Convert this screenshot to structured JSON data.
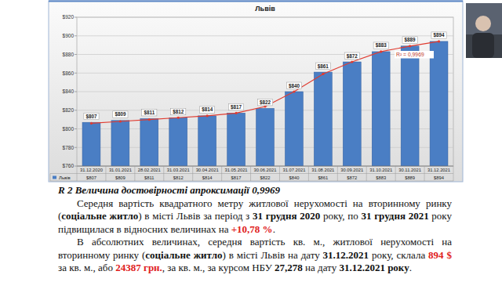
{
  "chart_data": {
    "type": "bar",
    "title": "Львів",
    "categories": [
      "31.12.2020",
      "31.01.2021",
      "28.02.2021",
      "31.03.2021",
      "30.04.2021",
      "31.05.2021",
      "30.06.2021",
      "31.07.2021",
      "31.08.2021",
      "30.09.2021",
      "31.10.2021",
      "30.11.2021",
      "31.12.2021"
    ],
    "series": [
      {
        "name": "Львів",
        "color": "#4a7ec4",
        "values": [
          807,
          809,
          811,
          812,
          814,
          817,
          822,
          840,
          861,
          872,
          883,
          889,
          894
        ],
        "value_labels": [
          "$807",
          "$809",
          "$811",
          "$812",
          "$814",
          "$817",
          "$822",
          "$840",
          "$861",
          "$872",
          "$883",
          "$889",
          "$894"
        ]
      },
      {
        "type": "line",
        "color": "#e03c31",
        "marker": "circle",
        "values": [
          806,
          808,
          810,
          812,
          814,
          817,
          824,
          840,
          859,
          872,
          883,
          889,
          894
        ]
      }
    ],
    "ylim": [
      760,
      920
    ],
    "yticks": [
      {
        "value": 760,
        "label": "$760"
      },
      {
        "value": 780,
        "label": "$780"
      },
      {
        "value": 800,
        "label": "$800"
      },
      {
        "value": 820,
        "label": "$820"
      },
      {
        "value": 840,
        "label": "$840"
      },
      {
        "value": 860,
        "label": "$860"
      },
      {
        "value": 880,
        "label": "$880"
      },
      {
        "value": 900,
        "label": "$900"
      },
      {
        "value": 920,
        "label": "$920"
      }
    ],
    "grid": true,
    "data_labels": true,
    "annotations": [
      "R² = 0,9969"
    ]
  },
  "document": {
    "caption": "R 2 Величина достовірності апроксимації 0,9969",
    "paragraphs": [
      [
        {
          "text": "Середня вартість квадратного метру житлової нерухомості на вторинному ринку (",
          "style": "normal"
        },
        {
          "text": "соціальне житло",
          "style": "bold"
        },
        {
          "text": ") в місті Львів за період з ",
          "style": "normal"
        },
        {
          "text": "31 грудня 2020",
          "style": "bold"
        },
        {
          "text": " року, по ",
          "style": "normal"
        },
        {
          "text": "31 грудня 2021",
          "style": "bold"
        },
        {
          "text": " року підвищилася в відносних величинах на ",
          "style": "normal"
        },
        {
          "text": "+10,78 %",
          "style": "bold-red"
        },
        {
          "text": ".",
          "style": "normal"
        }
      ],
      [
        {
          "text": "В абсолютних величинах, середня вартість кв. м., житлової нерухомості на вторинному ринку (",
          "style": "normal"
        },
        {
          "text": "соціальне житло",
          "style": "bold"
        },
        {
          "text": ") в місті Львів на дату ",
          "style": "normal"
        },
        {
          "text": "31.12.2021",
          "style": "bold"
        },
        {
          "text": " року, склала ",
          "style": "normal"
        },
        {
          "text": "894 $",
          "style": "bold-red"
        },
        {
          "text": " за кв. м., або ",
          "style": "normal"
        },
        {
          "text": "24387 грн.",
          "style": "bold-red"
        },
        {
          "text": ", за кв. м., за курсом НБУ ",
          "style": "normal"
        },
        {
          "text": "27,278",
          "style": "bold"
        },
        {
          "text": " на дату ",
          "style": "normal"
        },
        {
          "text": "31.12.2021 року",
          "style": "bold"
        },
        {
          "text": ".",
          "style": "normal"
        }
      ]
    ]
  }
}
